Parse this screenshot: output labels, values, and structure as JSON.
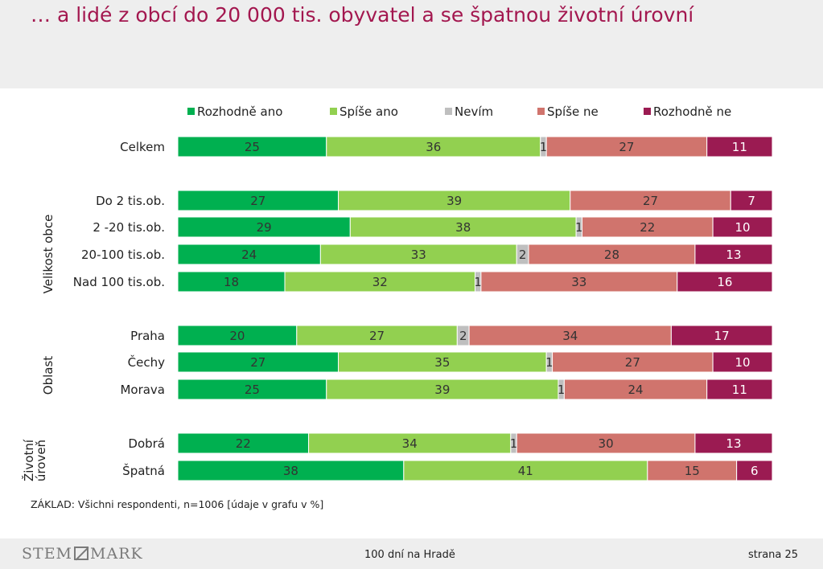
{
  "slide": {
    "title": "… a lidé z obcí do 20 000 tis. obyvatel a se špatnou životní úrovní",
    "basis_note": "ZÁKLAD: Všichni respondenti, n=1006 [údaje v grafu v %]",
    "footer_center": "100 dní na Hradě",
    "footer_right": "strana 25",
    "logo_left": "STEM",
    "logo_right": "MARK"
  },
  "groups": {
    "size": "Velikost obce",
    "region": "Oblast",
    "living_line1": "Životní",
    "living_line2": "úroveň"
  },
  "colors": {
    "Rozhodně ano": "#00b050",
    "Spíše ano": "#92d050",
    "Nevím": "#bfbfbf",
    "Spíše ne": "#d0746d",
    "Rozhodně ne": "#9b1b52"
  },
  "chart_data": {
    "type": "bar",
    "orientation": "horizontal",
    "stacked": "100%",
    "legend_position": "top",
    "series": [
      {
        "name": "Rozhodně ano",
        "values": [
          25,
          27,
          29,
          24,
          18,
          20,
          27,
          25,
          22,
          38
        ]
      },
      {
        "name": "Spíše ano",
        "values": [
          36,
          39,
          38,
          33,
          32,
          27,
          35,
          39,
          34,
          41
        ]
      },
      {
        "name": "Nevím",
        "values": [
          1,
          0,
          1,
          2,
          1,
          2,
          1,
          1,
          1,
          0
        ]
      },
      {
        "name": "Spíše ne",
        "values": [
          27,
          27,
          22,
          28,
          33,
          34,
          27,
          24,
          30,
          15
        ]
      },
      {
        "name": "Rozhodně ne",
        "values": [
          11,
          7,
          10,
          13,
          16,
          17,
          10,
          11,
          13,
          6
        ]
      }
    ],
    "categories": [
      "Celkem",
      "Do 2 tis.ob.",
      "2 -20 tis.ob.",
      "20-100 tis.ob.",
      "Nad 100 tis.ob.",
      "Praha",
      "Čechy",
      "Morava",
      "Dobrá",
      "Špatná"
    ]
  }
}
